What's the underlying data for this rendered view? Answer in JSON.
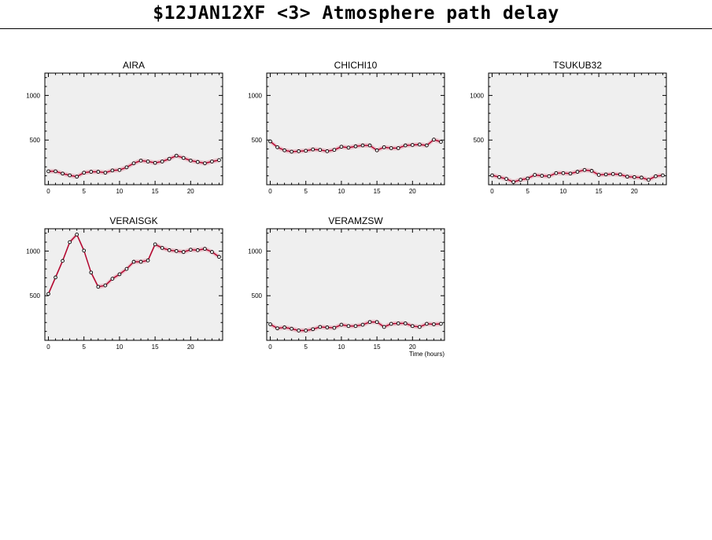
{
  "title": "$12JAN12XF <3>  Atmosphere path delay",
  "colors": {
    "panel_bg": "#efefef",
    "line": "#b0002a",
    "band": "#e8b9c3",
    "marker": "#000000"
  },
  "chart_data": [
    {
      "type": "line",
      "title": "AIRA",
      "xlabel": "",
      "xlim": [
        -0.5,
        24.5
      ],
      "ylim": [
        0,
        1250
      ],
      "xticks": [
        0,
        5,
        10,
        15,
        20
      ],
      "yticks": [
        500,
        1000
      ],
      "x": [
        0,
        1,
        2,
        3,
        4,
        5,
        6,
        7,
        8,
        9,
        10,
        11,
        12,
        13,
        14,
        15,
        16,
        17,
        18,
        19,
        20,
        21,
        22,
        23,
        24
      ],
      "y": [
        150,
        150,
        125,
        105,
        90,
        135,
        145,
        145,
        135,
        160,
        165,
        195,
        240,
        270,
        260,
        245,
        260,
        290,
        325,
        300,
        270,
        255,
        240,
        260,
        275
      ]
    },
    {
      "type": "line",
      "title": "CHICHI10",
      "xlabel": "",
      "xlim": [
        -0.5,
        24.5
      ],
      "ylim": [
        0,
        1250
      ],
      "xticks": [
        0,
        5,
        10,
        15,
        20
      ],
      "yticks": [
        500,
        1000
      ],
      "x": [
        0,
        1,
        2,
        3,
        4,
        5,
        6,
        7,
        8,
        9,
        10,
        11,
        12,
        13,
        14,
        15,
        16,
        17,
        18,
        19,
        20,
        21,
        22,
        23,
        24
      ],
      "y": [
        485,
        420,
        385,
        370,
        375,
        380,
        395,
        390,
        375,
        390,
        425,
        415,
        430,
        440,
        440,
        385,
        420,
        410,
        410,
        440,
        445,
        450,
        440,
        505,
        480
      ]
    },
    {
      "type": "line",
      "title": "TSUKUB32",
      "xlabel": "",
      "xlim": [
        -0.5,
        24.5
      ],
      "ylim": [
        0,
        1250
      ],
      "xticks": [
        0,
        5,
        10,
        15,
        20
      ],
      "yticks": [
        500,
        1000
      ],
      "x": [
        0,
        1,
        2,
        3,
        4,
        5,
        6,
        7,
        8,
        9,
        10,
        11,
        12,
        13,
        14,
        15,
        16,
        17,
        18,
        19,
        20,
        21,
        22,
        23,
        24
      ],
      "y": [
        105,
        85,
        65,
        30,
        55,
        70,
        110,
        100,
        95,
        130,
        130,
        125,
        145,
        165,
        155,
        110,
        115,
        120,
        115,
        90,
        85,
        80,
        55,
        95,
        105
      ]
    },
    {
      "type": "line",
      "title": "VERAISGK",
      "xlabel": "",
      "xlim": [
        -0.5,
        24.5
      ],
      "ylim": [
        0,
        1250
      ],
      "xticks": [
        0,
        5,
        10,
        15,
        20
      ],
      "yticks": [
        500,
        1000
      ],
      "x": [
        0,
        1,
        2,
        3,
        4,
        5,
        6,
        7,
        8,
        9,
        10,
        11,
        12,
        13,
        14,
        15,
        16,
        17,
        18,
        19,
        20,
        21,
        22,
        23,
        24
      ],
      "y": [
        520,
        705,
        890,
        1100,
        1185,
        1005,
        760,
        600,
        615,
        690,
        740,
        800,
        880,
        880,
        895,
        1075,
        1035,
        1010,
        1000,
        990,
        1015,
        1010,
        1025,
        990,
        935
      ]
    },
    {
      "type": "line",
      "title": "VERAMZSW",
      "xlabel": "Time (hours)",
      "xlim": [
        -0.5,
        24.5
      ],
      "ylim": [
        0,
        1250
      ],
      "xticks": [
        0,
        5,
        10,
        15,
        20
      ],
      "yticks": [
        500,
        1000
      ],
      "x": [
        0,
        1,
        2,
        3,
        4,
        5,
        6,
        7,
        8,
        9,
        10,
        11,
        12,
        13,
        14,
        15,
        16,
        17,
        18,
        19,
        20,
        21,
        22,
        23,
        24
      ],
      "y": [
        180,
        135,
        145,
        130,
        110,
        110,
        125,
        150,
        145,
        140,
        175,
        160,
        160,
        175,
        205,
        205,
        150,
        185,
        190,
        190,
        160,
        150,
        185,
        180,
        185
      ]
    }
  ]
}
